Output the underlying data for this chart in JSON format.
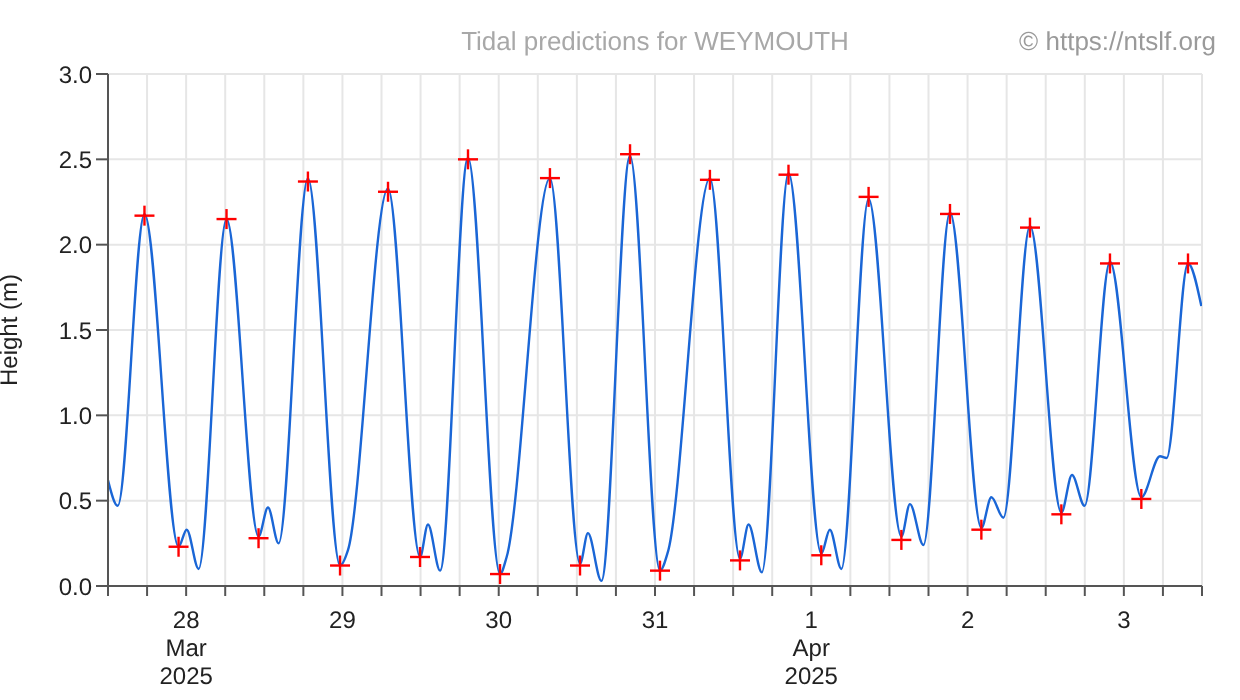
{
  "chart_data": {
    "type": "line",
    "title": "Tidal predictions for WEYMOUTH",
    "ylabel": "Height (m)",
    "annotations": [
      "© https://ntslf.org"
    ],
    "x": [
      "2025-03-28T00:00",
      "2025-03-28T01:30",
      "2025-03-28T05:36",
      "2025-03-28T10:50",
      "2025-03-28T12:05",
      "2025-03-28T13:55",
      "2025-03-28T18:12",
      "2025-03-28T23:07",
      "2025-03-29T00:34",
      "2025-03-29T02:12",
      "2025-03-29T06:42",
      "2025-03-29T11:38",
      "2025-03-29T12:51",
      "2025-03-29T14:42",
      "2025-03-29T19:00",
      "2025-03-29T23:55",
      "2025-03-30T01:08",
      "2025-03-30T03:00",
      "2025-03-30T07:17",
      "2025-03-30T12:12",
      "2025-03-30T13:13",
      "2025-03-30T15:29",
      "2025-03-30T19:52",
      "2025-03-31T00:29",
      "2025-03-31T01:42",
      "2025-03-31T03:46",
      "2025-03-31T08:10",
      "2025-03-31T12:46",
      "2025-03-31T13:59",
      "2025-03-31T16:02",
      "2025-03-31T20:26",
      "2025-04-01T01:03",
      "2025-04-01T02:22",
      "2025-04-01T04:25",
      "2025-04-01T08:30",
      "2025-04-01T13:32",
      "2025-04-01T14:51",
      "2025-04-01T16:37",
      "2025-04-01T20:48",
      "2025-04-02T01:50",
      "2025-04-02T03:09",
      "2025-04-02T05:13",
      "2025-04-02T09:18",
      "2025-04-02T14:07",
      "2025-04-02T15:39",
      "2025-04-02T17:30",
      "2025-04-02T21:35",
      "2025-04-03T02:24",
      "2025-04-03T04:02",
      "2025-04-03T05:58",
      "2025-04-03T09:52",
      "2025-04-03T14:41",
      "2025-04-03T17:33",
      "2025-04-03T18:34",
      "2025-04-03T21:51",
      "2025-04-03T23:54"
    ],
    "series": [
      {
        "color": "#1a66d6",
        "marker": "none",
        "values": [
          0.62,
          0.47,
          2.18,
          0.23,
          0.33,
          0.1,
          2.15,
          0.29,
          0.46,
          0.25,
          2.39,
          0.12,
          0.21,
          null,
          2.33,
          0.17,
          0.36,
          0.09,
          2.51,
          0.07,
          0.17,
          null,
          2.39,
          0.13,
          0.31,
          0.03,
          2.52,
          0.09,
          0.2,
          null,
          2.39,
          0.16,
          0.36,
          0.08,
          2.42,
          0.19,
          0.33,
          0.1,
          2.27,
          0.29,
          0.48,
          0.24,
          2.19,
          0.34,
          0.52,
          0.4,
          2.11,
          0.43,
          0.65,
          0.47,
          1.9,
          0.52,
          0.76,
          0.75,
          1.89,
          1.64
        ]
      },
      {
        "type": "scatter",
        "color": "#ff0000",
        "marker": "cross",
        "x": [
          "2025-03-28T05:36",
          "2025-03-28T10:50",
          "2025-03-28T18:12",
          "2025-03-28T23:07",
          "2025-03-29T06:42",
          "2025-03-29T11:38",
          "2025-03-29T19:00",
          "2025-03-29T23:55",
          "2025-03-30T07:17",
          "2025-03-30T12:12",
          "2025-03-30T19:52",
          "2025-03-31T00:29",
          "2025-03-31T08:10",
          "2025-03-31T12:46",
          "2025-03-31T20:26",
          "2025-04-01T01:03",
          "2025-04-01T08:30",
          "2025-04-01T13:32",
          "2025-04-01T20:48",
          "2025-04-02T01:50",
          "2025-04-02T09:18",
          "2025-04-02T14:07",
          "2025-04-02T21:35",
          "2025-04-03T02:24",
          "2025-04-03T09:52",
          "2025-04-03T14:41",
          "2025-04-03T21:51"
        ],
        "values": [
          2.17,
          0.23,
          2.15,
          0.28,
          2.37,
          0.12,
          2.31,
          0.17,
          2.5,
          0.07,
          2.39,
          0.12,
          2.53,
          0.09,
          2.38,
          0.15,
          2.41,
          0.18,
          2.28,
          0.27,
          2.18,
          0.33,
          2.1,
          0.42,
          1.89,
          0.51,
          1.89
        ]
      }
    ],
    "xlim": [
      "2025-03-28T00:00",
      "2025-04-04T00:00"
    ],
    "xticks": [
      {
        "value": "2025-03-28T00:00",
        "label": null
      },
      {
        "value": "2025-03-28T06:00",
        "label": null
      },
      {
        "value": "2025-03-28T12:00",
        "label": "28\nMar\n2025"
      },
      {
        "value": "2025-03-28T18:00",
        "label": null
      },
      {
        "value": "2025-03-29T00:00",
        "label": null
      },
      {
        "value": "2025-03-29T06:00",
        "label": null
      },
      {
        "value": "2025-03-29T12:00",
        "label": "29"
      },
      {
        "value": "2025-03-29T18:00",
        "label": null
      },
      {
        "value": "2025-03-30T00:00",
        "label": null
      },
      {
        "value": "2025-03-30T06:00",
        "label": null
      },
      {
        "value": "2025-03-30T12:00",
        "label": "30"
      },
      {
        "value": "2025-03-30T18:00",
        "label": null
      },
      {
        "value": "2025-03-31T00:00",
        "label": null
      },
      {
        "value": "2025-03-31T06:00",
        "label": null
      },
      {
        "value": "2025-03-31T12:00",
        "label": "31"
      },
      {
        "value": "2025-03-31T18:00",
        "label": null
      },
      {
        "value": "2025-04-01T00:00",
        "label": null
      },
      {
        "value": "2025-04-01T06:00",
        "label": null
      },
      {
        "value": "2025-04-01T12:00",
        "label": "1\nApr\n2025"
      },
      {
        "value": "2025-04-01T18:00",
        "label": null
      },
      {
        "value": "2025-04-02T00:00",
        "label": null
      },
      {
        "value": "2025-04-02T06:00",
        "label": null
      },
      {
        "value": "2025-04-02T12:00",
        "label": "2"
      },
      {
        "value": "2025-04-02T18:00",
        "label": null
      },
      {
        "value": "2025-04-03T00:00",
        "label": null
      },
      {
        "value": "2025-04-03T06:00",
        "label": null
      },
      {
        "value": "2025-04-03T12:00",
        "label": "3"
      },
      {
        "value": "2025-04-03T18:00",
        "label": null
      },
      {
        "value": "2025-04-04T00:00",
        "label": null
      }
    ],
    "ylim": [
      0,
      3
    ],
    "yticks": [
      {
        "value": 0,
        "label": "0.0"
      },
      {
        "value": 0.5,
        "label": "0.5"
      },
      {
        "value": 1,
        "label": "1.0"
      },
      {
        "value": 1.5,
        "label": "1.5"
      },
      {
        "value": 2,
        "label": "2.0"
      },
      {
        "value": 2.5,
        "label": "2.5"
      },
      {
        "value": 3,
        "label": "3.0"
      }
    ],
    "grid": true
  }
}
